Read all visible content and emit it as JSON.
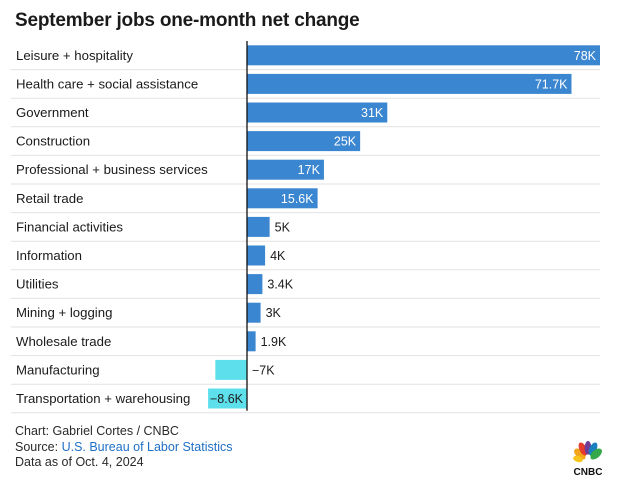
{
  "title": "September jobs one-month net change",
  "chart_data": {
    "type": "bar",
    "orientation": "horizontal",
    "title": "September jobs one-month net change",
    "categories": [
      "Leisure + hospitality",
      "Health care + social assistance",
      "Government",
      "Construction",
      "Professional + business services",
      "Retail trade",
      "Financial activities",
      "Information",
      "Utilities",
      "Mining + logging",
      "Wholesale trade",
      "Manufacturing",
      "Transportation + warehousing"
    ],
    "values": [
      78,
      71.7,
      31,
      25,
      17,
      15.6,
      5,
      4,
      3.4,
      3,
      1.9,
      -7,
      -8.6
    ],
    "value_labels": [
      "78K",
      "71.7K",
      "31K",
      "25K",
      "17K",
      "15.6K",
      "5K",
      "4K",
      "3.4K",
      "3K",
      "1.9K",
      "−7K",
      "−8.6K"
    ],
    "units": "thousands of jobs",
    "xlim": [
      -11,
      78
    ],
    "grid": false,
    "colors": {
      "positive": "#3b86d0",
      "negative": "#5ee0ec",
      "axis": "#111111",
      "row_line": "#e2e2e2"
    }
  },
  "footer": {
    "credit": "Chart: Gabriel Cortes / CNBC",
    "source_prefix": "Source: ",
    "source_link": "U.S. Bureau of Labor Statistics",
    "data_as_of": "Data as of Oct. 4, 2024"
  },
  "logo": {
    "text": "CNBC",
    "icon": "cnbc-peacock-icon"
  }
}
